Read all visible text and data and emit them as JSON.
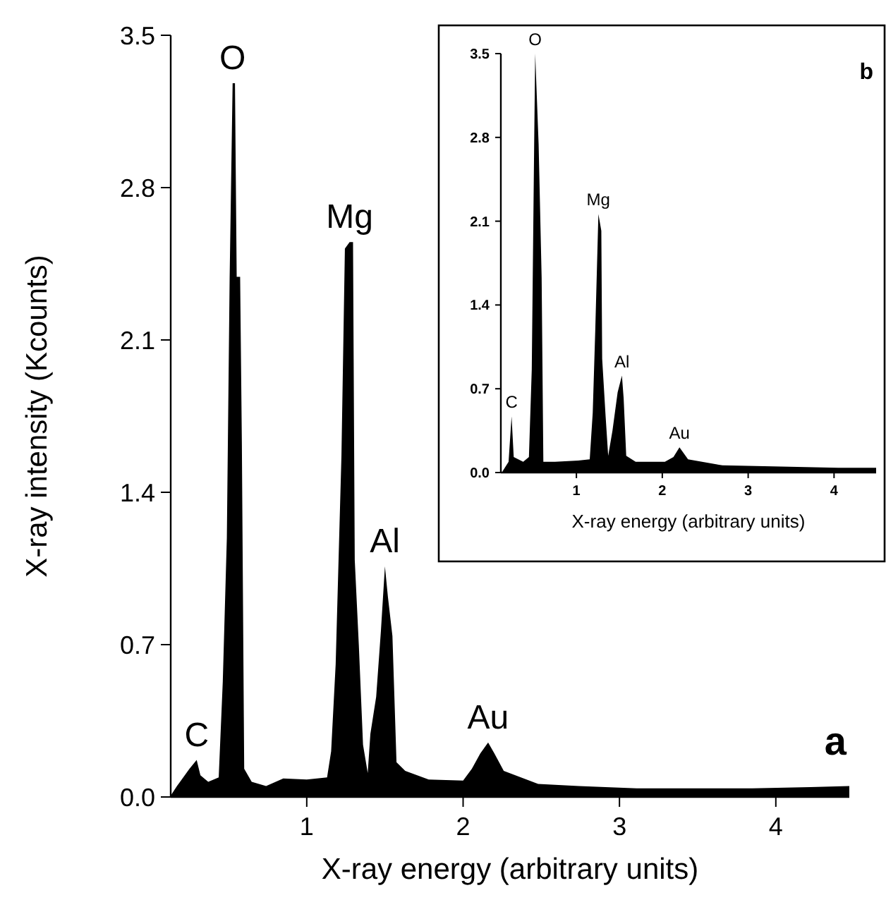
{
  "chart_data": [
    {
      "type": "area",
      "xlabel": "X-ray energy (arbitrary units)",
      "ylabel": "X-ray intensity (Kcounts)",
      "xlim": [
        0.13,
        4.47
      ],
      "ylim": [
        0,
        3.5
      ],
      "xticks": [
        1,
        2,
        3,
        4
      ],
      "yticks": [
        {
          "value": 0,
          "label": "0.0"
        },
        {
          "value": 0.7,
          "label": "0.7"
        },
        {
          "value": 1.4,
          "label": "1.4"
        },
        {
          "value": 2.1,
          "label": "2.1"
        },
        {
          "value": 2.8,
          "label": "2.8"
        },
        {
          "value": 3.5,
          "label": "3.5"
        }
      ],
      "x": [
        0.133,
        0.17,
        0.25,
        0.296,
        0.32,
        0.37,
        0.437,
        0.463,
        0.489,
        0.507,
        0.526,
        0.541,
        0.552,
        0.574,
        0.585,
        0.6,
        0.648,
        0.74,
        0.85,
        1.0,
        1.13,
        1.156,
        1.185,
        1.222,
        1.244,
        1.274,
        1.296,
        1.307,
        1.333,
        1.36,
        1.39,
        1.407,
        1.444,
        1.474,
        1.5,
        1.519,
        1.548,
        1.574,
        1.63,
        1.78,
        2.0,
        2.056,
        2.11,
        2.16,
        2.2,
        2.26,
        2.48,
        2.74,
        3.11,
        3.48,
        3.85,
        4.22,
        4.47
      ],
      "series": [
        {
          "color": "#000000",
          "values": [
            0.01,
            0.05,
            0.13,
            0.17,
            0.1,
            0.07,
            0.09,
            0.53,
            1.19,
            2.39,
            3.28,
            3.28,
            2.39,
            2.39,
            1.63,
            0.13,
            0.07,
            0.05,
            0.085,
            0.08,
            0.09,
            0.21,
            0.61,
            1.57,
            2.52,
            2.55,
            2.55,
            1.09,
            0.7,
            0.24,
            0.11,
            0.29,
            0.46,
            0.76,
            1.06,
            0.92,
            0.74,
            0.16,
            0.12,
            0.08,
            0.075,
            0.13,
            0.2,
            0.25,
            0.2,
            0.12,
            0.06,
            0.05,
            0.04,
            0.04,
            0.04,
            0.045,
            0.05
          ]
        }
      ],
      "annotations": [
        {
          "text": "C",
          "x": 0.296,
          "y": 0.17
        },
        {
          "text": "O",
          "x": 0.526,
          "y": 3.28
        },
        {
          "text": "Mg",
          "x": 1.274,
          "y": 2.55
        },
        {
          "text": "Al",
          "x": 1.5,
          "y": 1.06
        },
        {
          "text": "Au",
          "x": 2.16,
          "y": 0.25
        },
        "a"
      ]
    },
    {
      "type": "area",
      "xlabel": "X-ray energy (arbitrary units)",
      "xlim": [
        0.12,
        4.49
      ],
      "ylim": [
        0,
        3.5
      ],
      "xticks": [
        1,
        2,
        3,
        4
      ],
      "yticks": [
        {
          "value": 0,
          "label": "0.0"
        },
        {
          "value": 0.7,
          "label": "0.7"
        },
        {
          "value": 1.4,
          "label": "1.4"
        },
        {
          "value": 2.1,
          "label": "2.1"
        },
        {
          "value": 2.8,
          "label": "2.8"
        },
        {
          "value": 3.5,
          "label": "3.5"
        }
      ],
      "x": [
        0.14,
        0.21,
        0.245,
        0.27,
        0.38,
        0.447,
        0.48,
        0.508,
        0.52,
        0.56,
        0.595,
        0.615,
        0.75,
        1.02,
        1.155,
        1.19,
        1.22,
        1.256,
        1.29,
        1.3,
        1.34,
        1.37,
        1.42,
        1.48,
        1.53,
        1.55,
        1.58,
        1.69,
        2.03,
        2.13,
        2.2,
        2.3,
        2.7,
        3.38,
        4.05,
        4.49
      ],
      "series": [
        {
          "color": "#000000",
          "values": [
            0.01,
            0.09,
            0.47,
            0.13,
            0.09,
            0.13,
            0.86,
            2.74,
            3.5,
            2.74,
            1.63,
            0.09,
            0.09,
            0.1,
            0.11,
            0.5,
            1.2,
            2.16,
            2.02,
            0.95,
            0.47,
            0.14,
            0.35,
            0.67,
            0.81,
            0.62,
            0.14,
            0.09,
            0.09,
            0.13,
            0.21,
            0.11,
            0.06,
            0.05,
            0.04,
            0.04
          ]
        }
      ],
      "annotations": [
        {
          "text": "C",
          "x": 0.245,
          "y": 0.47
        },
        {
          "text": "O",
          "x": 0.52,
          "y": 3.5
        },
        {
          "text": "Mg",
          "x": 1.256,
          "y": 2.16
        },
        {
          "text": "Al",
          "x": 1.53,
          "y": 0.81
        },
        {
          "text": "Au",
          "x": 2.2,
          "y": 0.21
        },
        "b"
      ]
    }
  ]
}
